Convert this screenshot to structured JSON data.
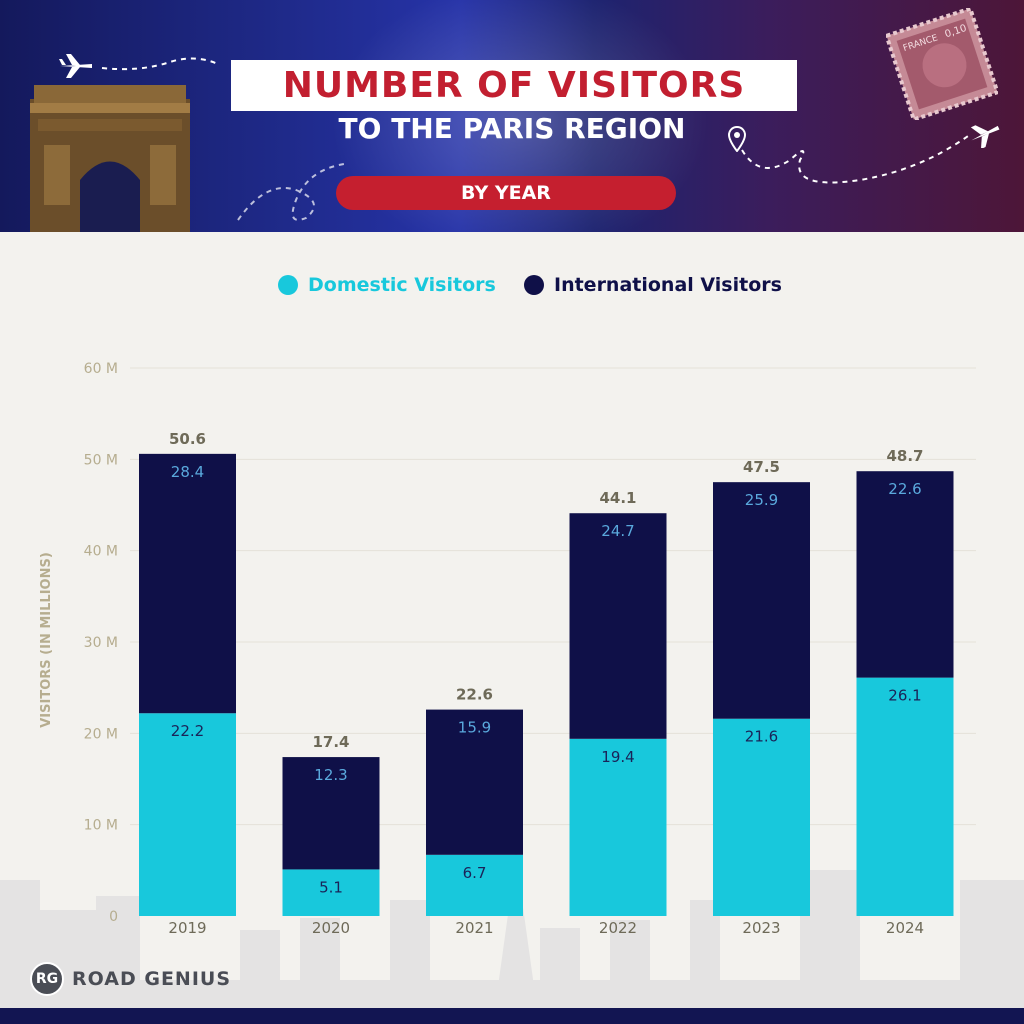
{
  "header": {
    "title": "NUMBER OF VISITORS",
    "subtitle": "TO THE PARIS REGION",
    "pill": "BY YEAR",
    "stamp_text": "FRANCE",
    "stamp_value": "0,10"
  },
  "legend": {
    "domestic": "Domestic Visitors",
    "international": "International Visitors"
  },
  "colors": {
    "domestic": "#18c8dc",
    "international": "#0f1048",
    "title_red": "#c21f30",
    "axis_text": "#b6ad8f",
    "total_text": "#6e6a58"
  },
  "brand": {
    "badge": "RG",
    "name": "ROAD GENIUS"
  },
  "chart_data": {
    "type": "bar",
    "stacked": true,
    "categories": [
      "2019",
      "2020",
      "2021",
      "2022",
      "2023",
      "2024"
    ],
    "series": [
      {
        "name": "Domestic Visitors",
        "values": [
          22.2,
          5.1,
          6.7,
          19.4,
          21.6,
          26.1
        ]
      },
      {
        "name": "International Visitors",
        "values": [
          28.4,
          12.3,
          15.9,
          24.7,
          25.9,
          22.6
        ]
      }
    ],
    "totals": [
      "50.6",
      "17.4",
      "22.6",
      "44.1",
      "47.5",
      "48.7"
    ],
    "series_labels": [
      [
        "22.2",
        "5.1",
        "6.7",
        "19.4",
        "21.6",
        "26.1"
      ],
      [
        "28.4",
        "12.3",
        "15.9",
        "24.7",
        "25.9",
        "22.6"
      ]
    ],
    "ylabel": "VISITORS (IN MILLIONS)",
    "yticks": [
      {
        "value": 0,
        "label": "0"
      },
      {
        "value": 10,
        "label": "10 M"
      },
      {
        "value": 20,
        "label": "20 M"
      },
      {
        "value": 30,
        "label": "30 M"
      },
      {
        "value": 40,
        "label": "40 M"
      },
      {
        "value": 50,
        "label": "50 M"
      },
      {
        "value": 60,
        "label": "60 M"
      }
    ],
    "ylim": [
      0,
      60
    ],
    "grid": true,
    "legend_position": "top-center"
  }
}
